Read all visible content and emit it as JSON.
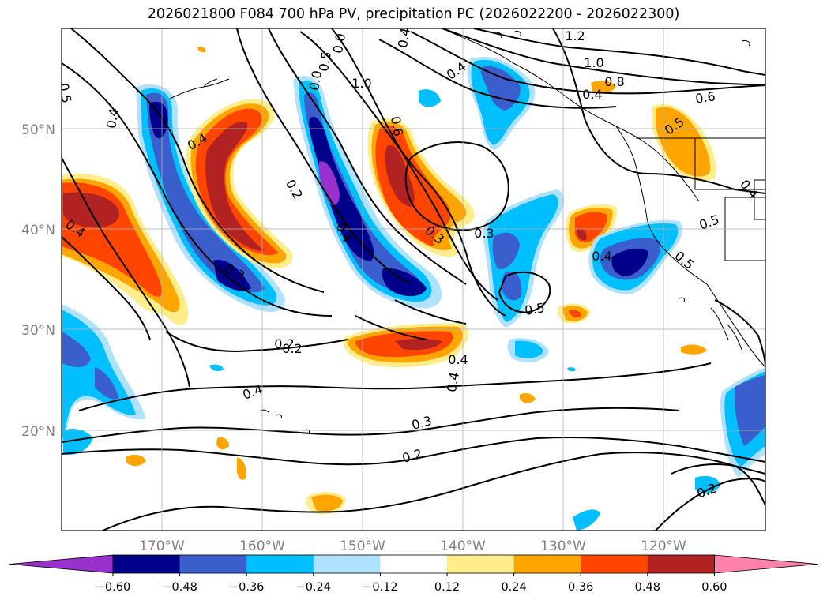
{
  "title": "2026021800 F084 700 hPa PV, precipitation PC (2026022200 - 2026022300)",
  "map": {
    "lat_ticks": [
      "50°N",
      "40°N",
      "30°N",
      "20°N"
    ],
    "lon_ticks": [
      "170°W",
      "160°W",
      "150°W",
      "140°W",
      "130°W",
      "120°W"
    ],
    "contour_labels": [
      "1.2",
      "1.0",
      "0.8",
      "0.6",
      "0.5",
      "0.4",
      "0.4",
      "0.4",
      "1.0",
      "0.6",
      "0.4",
      "0.5",
      "0.4",
      "0.4",
      "0.3",
      "0.2",
      "0.2",
      "0.3",
      "0.4",
      "0.5",
      "0.4",
      "0.5",
      "0.4",
      "0.5",
      "0.5",
      "0.4",
      "0.3",
      "0.2",
      "0.4",
      "0.4",
      "0.3",
      "0.2",
      "0.2",
      "0.0",
      "0.0"
    ]
  },
  "colorbar": {
    "colors": [
      "#9932cc",
      "#00008b",
      "#3a5fcd",
      "#00bfff",
      "#b0e2ff",
      "#ffffff",
      "#ffec8b",
      "#ffa500",
      "#ff4500",
      "#b22222",
      "#ff82ab"
    ],
    "tick_labels": [
      "−0.60",
      "−0.48",
      "−0.36",
      "−0.24",
      "−0.12",
      "0.12",
      "0.24",
      "0.36",
      "0.48",
      "0.60"
    ]
  }
}
